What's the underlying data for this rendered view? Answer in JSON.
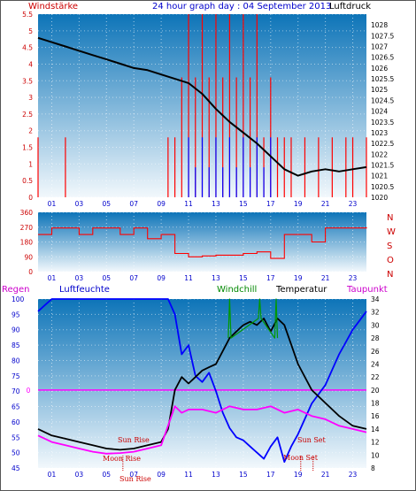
{
  "colors": {
    "plot_top": "#0d74b8",
    "plot_bottom": "#f2f8fc",
    "wind": "#ff0000",
    "wind_gust": "#0000ff",
    "pressure": "#000000",
    "humidity": "#0000ff",
    "temperature": "#000000",
    "dewpoint": "#ff00ff",
    "windchill": "#009900",
    "rain": "#ff00ff",
    "sun_moon": "#cc0000",
    "label_blue": "#0000cc",
    "label_green": "#008800",
    "label_red": "#cc0000"
  },
  "header": {
    "title": "24 hour graph day : 04 September 2013",
    "left_label": "Windstärke",
    "right_label": "Luftdruck"
  },
  "x_ticks": [
    "01",
    "03",
    "05",
    "07",
    "09",
    "11",
    "13",
    "15",
    "17",
    "19",
    "21",
    "23"
  ],
  "wind_dir_letters": [
    "N",
    "W",
    "S",
    "O",
    "N"
  ],
  "chart_data": [
    {
      "type": "line",
      "title": "24 hour graph day : 04 September 2013",
      "xlabel": "",
      "ylabel_left": "Windstärke",
      "ylabel_right": "Luftdruck",
      "x_range": [
        0,
        24
      ],
      "ylim_left": [
        0,
        5.5
      ],
      "ylim_right": [
        1020,
        1028.5
      ],
      "y_ticks_left": [
        "0",
        "0.5",
        "1",
        "1.5",
        "2",
        "2.5",
        "3",
        "3.5",
        "4",
        "4.5",
        "5",
        "5.5"
      ],
      "y_ticks_right": [
        "1020",
        "1020.5",
        "1021",
        "1021.5",
        "1022",
        "1022.5",
        "1023",
        "1023.5",
        "1024",
        "1024.5",
        "1025",
        "1025.5",
        "1026",
        "1026.5",
        "1027",
        "1027.5",
        "1028"
      ],
      "grid": true,
      "series": [
        {
          "name": "Luftdruck",
          "axis": "right",
          "x": [
            0,
            1,
            2,
            3,
            4,
            5,
            6,
            7,
            8,
            9,
            10,
            11,
            12,
            13,
            14,
            15,
            16,
            17,
            18,
            19,
            20,
            21,
            22,
            23,
            24
          ],
          "values": [
            1027.4,
            1027.2,
            1027.0,
            1026.8,
            1026.6,
            1026.4,
            1026.2,
            1026.0,
            1025.9,
            1025.7,
            1025.5,
            1025.3,
            1024.8,
            1024.1,
            1023.5,
            1023.0,
            1022.5,
            1021.9,
            1021.3,
            1021.0,
            1021.2,
            1021.3,
            1021.2,
            1021.3,
            1021.4
          ]
        },
        {
          "name": "Windstärke",
          "axis": "left",
          "x": [
            0,
            1,
            2,
            3,
            4,
            5,
            6,
            7,
            8,
            9,
            9.5,
            10,
            10.5,
            11,
            11.5,
            12,
            12.5,
            13,
            13.5,
            14,
            14.5,
            15,
            15.5,
            16,
            16.5,
            17,
            17.5,
            18,
            18.5,
            19,
            19.5,
            20,
            20.5,
            21,
            21.5,
            22,
            22.5,
            23,
            23.5,
            24
          ],
          "values": [
            1.8,
            0,
            1.8,
            0,
            0,
            0,
            0,
            0,
            0,
            0,
            1.8,
            1.8,
            3.6,
            5.5,
            3.6,
            5.5,
            3.6,
            5.5,
            3.6,
            5.5,
            3.6,
            5.5,
            3.6,
            5.5,
            1.8,
            3.6,
            1.8,
            1.8,
            1.8,
            0,
            1.8,
            0,
            1.8,
            0,
            1.8,
            0,
            1.8,
            1.8,
            0,
            1.8
          ]
        },
        {
          "name": "Böen",
          "axis": "left",
          "x": [
            10.5,
            11,
            11.5,
            12,
            12.5,
            13,
            13.5,
            14,
            14.5,
            15,
            15.5,
            16,
            16.5,
            17
          ],
          "values": [
            0,
            1.8,
            0.9,
            1.8,
            0.9,
            1.8,
            0.9,
            1.8,
            0.9,
            1.8,
            0.9,
            1.8,
            0.9,
            1.8
          ]
        }
      ]
    },
    {
      "type": "line",
      "title": "",
      "ylabel": "",
      "x_range": [
        0,
        24
      ],
      "ylim": [
        0,
        360
      ],
      "y_ticks": [
        "0",
        "90",
        "180",
        "270",
        "360"
      ],
      "grid": true,
      "series": [
        {
          "name": "Windrichtung",
          "x": [
            0,
            1,
            2,
            3,
            4,
            5,
            6,
            7,
            8,
            9,
            10,
            11,
            12,
            13,
            14,
            15,
            16,
            17,
            18,
            19,
            20,
            21,
            22,
            23,
            24
          ],
          "values": [
            225,
            265,
            265,
            225,
            265,
            265,
            225,
            265,
            200,
            225,
            110,
            90,
            95,
            100,
            100,
            110,
            120,
            80,
            225,
            225,
            180,
            265,
            265,
            265,
            270
          ]
        }
      ]
    },
    {
      "type": "line",
      "title": "",
      "ylabel_left": "Regen / Luftfeuchte",
      "ylabel_right": "Temperatur",
      "x_range": [
        0,
        24
      ],
      "ylim_left": [
        45,
        100
      ],
      "ylim_right": [
        8,
        34
      ],
      "y_ticks_left": [
        "100",
        "95",
        "90",
        "85",
        "80",
        "75",
        "70",
        "65",
        "60",
        "55",
        "50",
        "45"
      ],
      "y_ticks_right": [
        "34",
        "32",
        "30",
        "28",
        "26",
        "24",
        "22",
        "20",
        "18",
        "16",
        "14",
        "12",
        "10",
        "8"
      ],
      "rain_label": "0",
      "grid": true,
      "series": [
        {
          "name": "Luftfeuchte",
          "axis": "left",
          "x": [
            0,
            0.5,
            1,
            2,
            3,
            4,
            5,
            6,
            7,
            8,
            9,
            9.5,
            10,
            10.5,
            11,
            11.5,
            12,
            12.5,
            13,
            13.5,
            14,
            14.5,
            15,
            15.5,
            16,
            16.5,
            17,
            17.5,
            18,
            18.5,
            19,
            20,
            21,
            22,
            23,
            24
          ],
          "values": [
            96,
            98,
            100,
            100,
            100,
            100,
            100,
            100,
            100,
            100,
            100,
            100,
            95,
            82,
            85,
            75,
            73,
            76,
            70,
            63,
            58,
            55,
            54,
            52,
            50,
            48,
            52,
            55,
            47,
            52,
            56,
            66,
            72,
            82,
            90,
            96
          ]
        },
        {
          "name": "Temperatur",
          "axis": "right",
          "x": [
            0,
            1,
            2,
            3,
            4,
            5,
            6,
            7,
            8,
            9,
            9.5,
            10,
            10.5,
            11,
            11.5,
            12,
            12.5,
            13,
            13.5,
            14,
            14.5,
            15,
            15.5,
            16,
            16.5,
            17,
            17.5,
            18,
            18.5,
            19,
            20,
            21,
            22,
            23,
            24
          ],
          "values": [
            14,
            13,
            12.5,
            12,
            11.5,
            11,
            10.8,
            11,
            11.5,
            12,
            14,
            20,
            22,
            21,
            22,
            23,
            23.5,
            24,
            26,
            28,
            29,
            30,
            30.5,
            30,
            31,
            29,
            31,
            30,
            27,
            24,
            20,
            18,
            16,
            14.5,
            14
          ]
        },
        {
          "name": "Taupunkt",
          "axis": "right",
          "x": [
            0,
            1,
            2,
            3,
            4,
            5,
            6,
            7,
            8,
            9,
            10,
            10.5,
            11,
            12,
            13,
            14,
            15,
            16,
            17,
            18,
            19,
            20,
            21,
            22,
            23,
            24
          ],
          "values": [
            13,
            12,
            11.5,
            11,
            10.5,
            10.2,
            10.3,
            10.5,
            11,
            11.5,
            17.5,
            16.5,
            17,
            17,
            16.5,
            17.5,
            17,
            17,
            17.5,
            16.5,
            17,
            16,
            15.5,
            14.5,
            14,
            13.5
          ]
        },
        {
          "name": "Windchill",
          "axis": "right",
          "x": [
            13.9,
            14,
            14.1,
            16.1,
            16.2,
            16.3,
            17.3,
            17.4,
            17.5
          ],
          "values": [
            28,
            34,
            28,
            31,
            34,
            31,
            28,
            34,
            28
          ]
        }
      ],
      "annotations": [
        "Sun Rise",
        "Moon Rise",
        "Sun Set",
        "Moon Set",
        "Sun Rise"
      ]
    }
  ],
  "bottom_panel": {
    "label_regen": "Regen",
    "label_luftfeuchte": "Luftfeuchte",
    "label_windchill": "Windchill",
    "label_temperatur": "Temperatur",
    "label_taupunkt": "Taupunkt",
    "sun_rise": "Sun Rise",
    "moon_rise": "Moon Rise",
    "sun_set": "Sun Set",
    "moon_set": "Moon Set",
    "sun_rise_small": "Sun Rise"
  }
}
